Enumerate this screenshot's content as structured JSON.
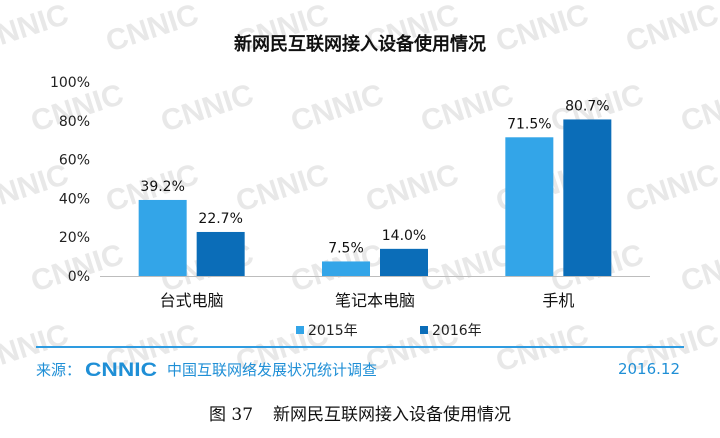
{
  "chart_data": {
    "type": "bar",
    "title": "新网民互联网接入设备使用情况",
    "categories": [
      "台式电脑",
      "笔记本电脑",
      "手机"
    ],
    "series": [
      {
        "name": "2015年",
        "values": [
          39.2,
          7.5,
          71.5
        ],
        "labels": [
          "39.2%",
          "7.5%",
          "71.5%"
        ],
        "color": "#33a5e8"
      },
      {
        "name": "2016年",
        "values": [
          22.7,
          14.0,
          80.7
        ],
        "labels": [
          "22.7%",
          "14.0%",
          "80.7%"
        ],
        "color": "#0b6db8"
      }
    ],
    "yticks": [
      "0%",
      "20%",
      "40%",
      "60%",
      "80%",
      "100%"
    ],
    "ylim": [
      0,
      100
    ],
    "xlabel": "",
    "ylabel": "",
    "grid": false,
    "legend_position": "bottom"
  },
  "watermark": {
    "text": "CNNIC",
    "color": "#e8e8e8"
  },
  "footer": {
    "source_label": "来源：",
    "logo_text": "CNNIC",
    "org_name": "中国互联网络发展状况统计调查",
    "date": "2016.12",
    "color": "#1f8fd6"
  },
  "caption": {
    "number": "图 37",
    "text": "新网民互联网接入设备使用情况"
  }
}
